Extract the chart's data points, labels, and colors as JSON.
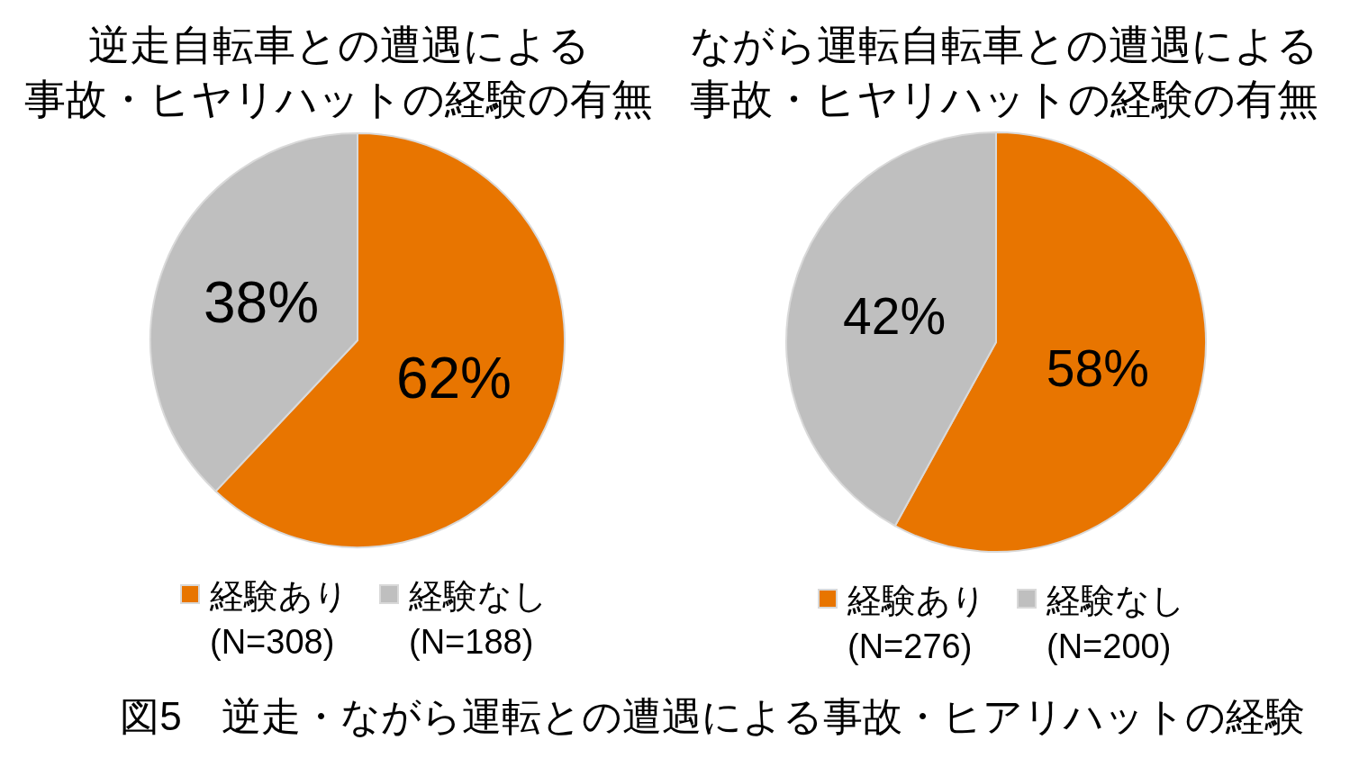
{
  "chart_data": [
    {
      "type": "pie",
      "title": "逆走自転車との遭遇による事故・ヒヤリハットの経験の有無",
      "categories": [
        "経験あり\n(N=308)",
        "経験なし\n(N=188)"
      ],
      "values": [
        62,
        38
      ],
      "colors": [
        "#e87500",
        "#bfbfbf"
      ],
      "value_labels": [
        "62%",
        "38%"
      ],
      "legend": "bottom"
    },
    {
      "type": "pie",
      "title": "ながら運転自転車との遭遇による事故・ヒヤリハットの経験の有無",
      "categories": [
        "経験あり\n(N=276)",
        "経験なし\n(N=200)"
      ],
      "values": [
        58,
        42
      ],
      "colors": [
        "#e87500",
        "#bfbfbf"
      ],
      "value_labels": [
        "58%",
        "42%"
      ],
      "legend": "bottom",
      "annotations": [
        "図5　逆走・ながら運転との遭遇による事故・ヒアリハットの経験"
      ]
    }
  ]
}
